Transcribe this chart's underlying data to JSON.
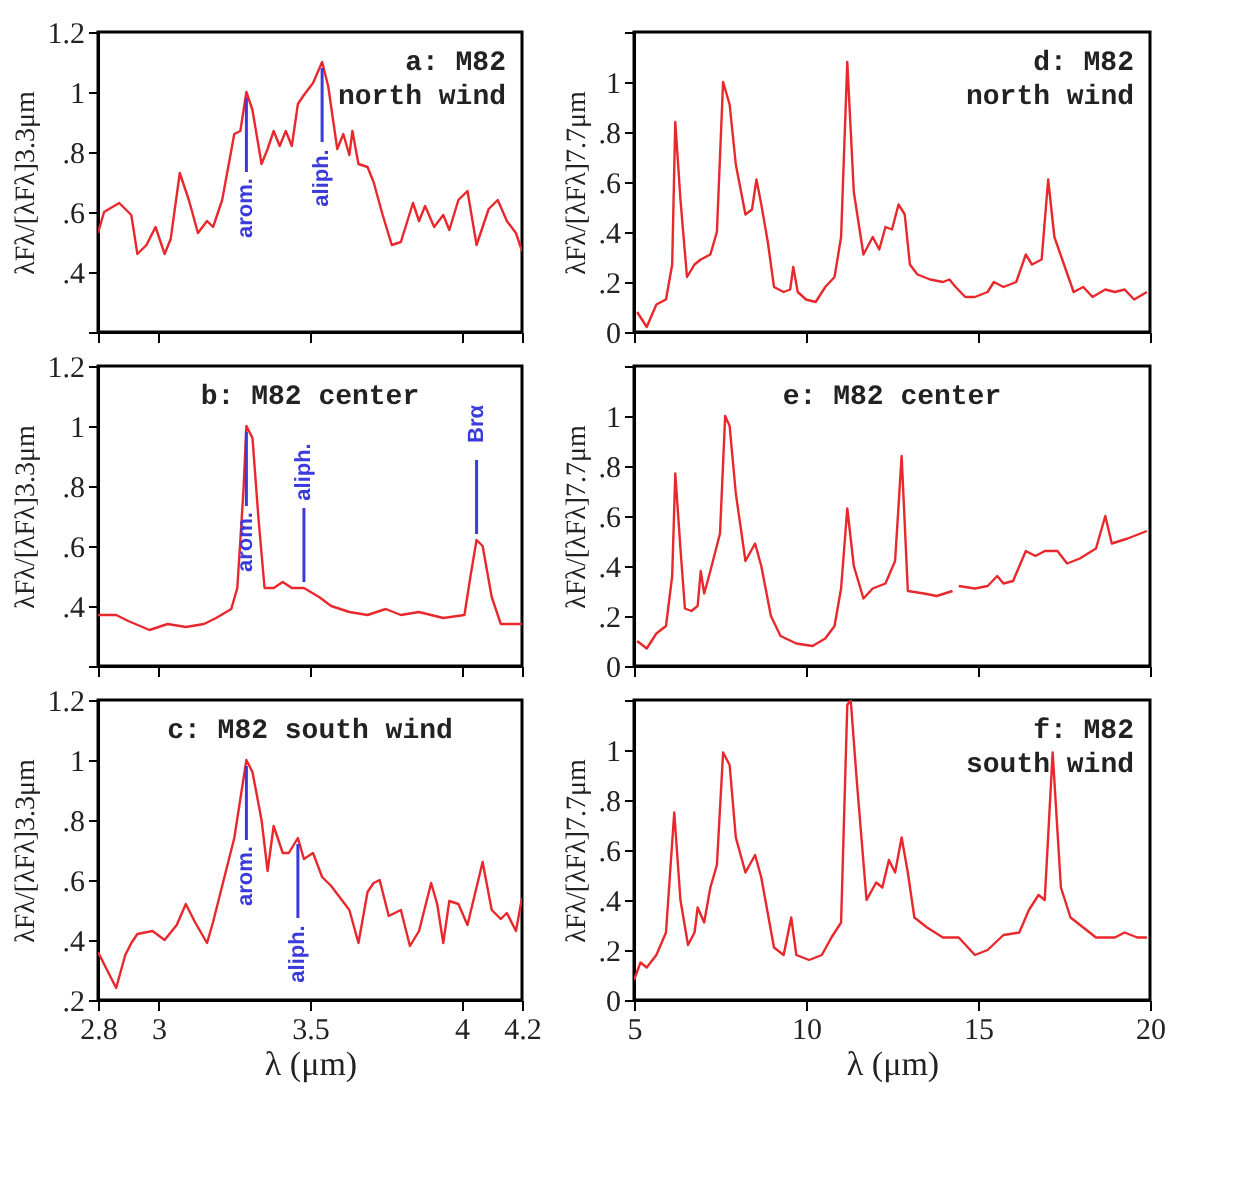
{
  "chart_data": [
    {
      "type": "line",
      "title": "a: M82\nnorth wind",
      "ylabel": "λFλ/[λFλ]3.3μm",
      "xlim": [
        2.8,
        4.2
      ],
      "ylim": [
        0.2,
        1.2
      ],
      "xticks": [
        2.8,
        3,
        3.5,
        4,
        4.2
      ],
      "yticks": [
        {
          "value": 0.2,
          "label": null
        },
        {
          "value": 0.4,
          "label": ".4"
        },
        {
          "value": 0.6,
          "label": ".6"
        },
        {
          "value": 0.8,
          "label": ".8"
        },
        1,
        1.2
      ],
      "tick_labels": "y",
      "grid": false,
      "series": [
        {
          "color": "#e8282c",
          "x": [
            2.8,
            2.82,
            2.87,
            2.91,
            2.93,
            2.96,
            2.99,
            3.02,
            3.04,
            3.07,
            3.1,
            3.13,
            3.16,
            3.18,
            3.21,
            3.25,
            3.27,
            3.29,
            3.31,
            3.34,
            3.36,
            3.38,
            3.4,
            3.42,
            3.44,
            3.46,
            3.48,
            3.51,
            3.54,
            3.56,
            3.59,
            3.61,
            3.63,
            3.64,
            3.66,
            3.69,
            3.71,
            3.74,
            3.77,
            3.8,
            3.84,
            3.86,
            3.88,
            3.91,
            3.94,
            3.96,
            3.99,
            4.02,
            4.05,
            4.09,
            4.12,
            4.15,
            4.18,
            4.2
          ],
          "values": [
            0.53,
            0.6,
            0.63,
            0.59,
            0.46,
            0.49,
            0.55,
            0.46,
            0.51,
            0.73,
            0.64,
            0.53,
            0.57,
            0.55,
            0.64,
            0.86,
            0.87,
            1.0,
            0.94,
            0.76,
            0.81,
            0.87,
            0.82,
            0.87,
            0.82,
            0.96,
            0.99,
            1.03,
            1.1,
            1.02,
            0.81,
            0.86,
            0.79,
            0.87,
            0.76,
            0.75,
            0.7,
            0.59,
            0.49,
            0.5,
            0.63,
            0.57,
            0.62,
            0.55,
            0.59,
            0.54,
            0.64,
            0.67,
            0.49,
            0.61,
            0.64,
            0.57,
            0.53,
            0.47
          ]
        }
      ],
      "annotations": [
        {
          "text": "arom.",
          "x": 3.29,
          "y": 1.0
        },
        {
          "text": "aliph.",
          "x": 3.54,
          "y": 1.1
        }
      ]
    },
    {
      "type": "line",
      "title": "d: M82\nnorth wind",
      "ylabel": "λFλ/[λFλ]7.7μm",
      "xlim": [
        5,
        20
      ],
      "ylim": [
        0,
        1.2
      ],
      "xticks": [
        5,
        10,
        15,
        20
      ],
      "yticks": [
        0,
        {
          "value": 0.2,
          "label": ".2"
        },
        {
          "value": 0.4,
          "label": ".4"
        },
        {
          "value": 0.6,
          "label": ".6"
        },
        {
          "value": 0.8,
          "label": ".8"
        },
        1,
        {
          "value": 1.2,
          "label": null
        }
      ],
      "tick_labels": "y",
      "grid": false,
      "series": [
        {
          "color": "#e8282c",
          "x": [
            5.09,
            5.37,
            5.65,
            5.93,
            6.11,
            6.2,
            6.35,
            6.54,
            6.76,
            6.94,
            7.22,
            7.41,
            7.59,
            7.78,
            7.96,
            8.24,
            8.43,
            8.56,
            8.7,
            8.89,
            9.07,
            9.35,
            9.54,
            9.63,
            9.76,
            10.0,
            10.28,
            10.56,
            10.83,
            11.02,
            11.2,
            11.39,
            11.67,
            11.94,
            12.13,
            12.31,
            12.5,
            12.69,
            12.87,
            13.02,
            13.24,
            13.61,
            13.98,
            14.17,
            14.35,
            14.63,
            14.91,
            15.28,
            15.46,
            15.74,
            16.11,
            16.39,
            16.57,
            16.85,
            17.04,
            17.22,
            17.5,
            17.78,
            18.06,
            18.33,
            18.7,
            18.98,
            19.26,
            19.54,
            19.91
          ],
          "values": [
            0.08,
            0.02,
            0.11,
            0.13,
            0.27,
            0.84,
            0.53,
            0.22,
            0.27,
            0.29,
            0.31,
            0.4,
            1.0,
            0.91,
            0.67,
            0.47,
            0.49,
            0.61,
            0.51,
            0.36,
            0.18,
            0.16,
            0.17,
            0.26,
            0.16,
            0.13,
            0.12,
            0.18,
            0.22,
            0.38,
            1.08,
            0.56,
            0.31,
            0.38,
            0.33,
            0.42,
            0.41,
            0.51,
            0.47,
            0.27,
            0.23,
            0.21,
            0.2,
            0.21,
            0.18,
            0.14,
            0.14,
            0.16,
            0.2,
            0.18,
            0.2,
            0.31,
            0.27,
            0.29,
            0.61,
            0.38,
            0.27,
            0.16,
            0.18,
            0.14,
            0.17,
            0.16,
            0.17,
            0.13,
            0.16
          ]
        }
      ]
    },
    {
      "type": "line",
      "title": "b: M82 center",
      "ylabel": "λFλ/[λFλ]3.3μm",
      "xlim": [
        2.8,
        4.2
      ],
      "ylim": [
        0.2,
        1.2
      ],
      "xticks": [
        2.8,
        3,
        3.5,
        4,
        4.2
      ],
      "yticks": [
        {
          "value": 0.2,
          "label": null
        },
        {
          "value": 0.4,
          "label": ".4"
        },
        {
          "value": 0.6,
          "label": ".6"
        },
        {
          "value": 0.8,
          "label": ".8"
        },
        1,
        1.2
      ],
      "tick_labels": "y",
      "grid": false,
      "series": [
        {
          "color": "#e8282c",
          "x": [
            2.8,
            2.86,
            2.9,
            2.97,
            3.03,
            3.09,
            3.15,
            3.19,
            3.24,
            3.26,
            3.28,
            3.29,
            3.31,
            3.33,
            3.35,
            3.38,
            3.41,
            3.44,
            3.48,
            3.53,
            3.57,
            3.63,
            3.69,
            3.75,
            3.8,
            3.86,
            3.94,
            4.01,
            4.03,
            4.05,
            4.07,
            4.1,
            4.13,
            4.2
          ],
          "values": [
            0.37,
            0.37,
            0.35,
            0.32,
            0.34,
            0.33,
            0.34,
            0.36,
            0.39,
            0.46,
            0.78,
            1.0,
            0.96,
            0.69,
            0.46,
            0.46,
            0.48,
            0.46,
            0.46,
            0.43,
            0.4,
            0.38,
            0.37,
            0.39,
            0.37,
            0.38,
            0.36,
            0.37,
            0.5,
            0.62,
            0.6,
            0.43,
            0.34,
            0.34
          ]
        }
      ],
      "annotations": [
        {
          "text": "arom.",
          "x": 3.29,
          "y": 1.0
        },
        {
          "text": "aliph.",
          "x": 3.48,
          "y": 0.46
        },
        {
          "text": "Brα",
          "x": 4.05,
          "y": 0.62
        }
      ]
    },
    {
      "type": "line",
      "title": "e: M82 center",
      "ylabel": "λFλ/[λFλ]7.7μm",
      "xlim": [
        5,
        20
      ],
      "ylim": [
        0,
        1.2
      ],
      "xticks": [
        5,
        10,
        15,
        20
      ],
      "yticks": [
        0,
        {
          "value": 0.2,
          "label": ".2"
        },
        {
          "value": 0.4,
          "label": ".4"
        },
        {
          "value": 0.6,
          "label": ".6"
        },
        {
          "value": 0.8,
          "label": ".8"
        },
        1,
        {
          "value": 1.2,
          "label": null
        }
      ],
      "tick_labels": "y",
      "grid": false,
      "series": [
        {
          "color": "#e8282c",
          "x": [
            5.09,
            5.37,
            5.65,
            5.93,
            6.11,
            6.2,
            6.35,
            6.48,
            6.67,
            6.85,
            6.94,
            7.04,
            7.22,
            7.5,
            7.65,
            7.78,
            7.96,
            8.24,
            8.52,
            8.7,
            8.98,
            9.26,
            9.72,
            10.19,
            10.56,
            10.83,
            11.02,
            11.2,
            11.39,
            11.67,
            11.94,
            12.31,
            12.59,
            12.78,
            12.96,
            13.43,
            13.8,
            14.26,
            14.35,
            14.44,
            14.91,
            15.28,
            15.56,
            15.74,
            16.02,
            16.39,
            16.67,
            16.94,
            17.31,
            17.59,
            17.96,
            18.43,
            18.7,
            18.89,
            19.35,
            19.91
          ],
          "values": [
            0.1,
            0.07,
            0.13,
            0.16,
            0.36,
            0.77,
            0.47,
            0.23,
            0.22,
            0.24,
            0.38,
            0.29,
            0.38,
            0.53,
            1.0,
            0.96,
            0.69,
            0.42,
            0.49,
            0.4,
            0.2,
            0.12,
            0.09,
            0.08,
            0.11,
            0.16,
            0.31,
            0.63,
            0.4,
            0.27,
            0.31,
            0.33,
            0.42,
            0.84,
            0.3,
            0.29,
            0.28,
            0.3,
            null,
            0.32,
            0.31,
            0.32,
            0.36,
            0.33,
            0.34,
            0.46,
            0.44,
            0.46,
            0.46,
            0.41,
            0.43,
            0.47,
            0.6,
            0.49,
            0.51,
            0.54
          ]
        }
      ]
    },
    {
      "type": "line",
      "title": "c: M82 south wind",
      "ylabel": "λFλ/[λFλ]3.3μm",
      "xlabel": "λ (μm)",
      "xlim": [
        2.8,
        4.2
      ],
      "ylim": [
        0.2,
        1.2
      ],
      "xticks": [
        2.8,
        3,
        3.5,
        4,
        4.2
      ],
      "yticks": [
        {
          "value": 0.2,
          "label": ".2"
        },
        {
          "value": 0.4,
          "label": ".4"
        },
        {
          "value": 0.6,
          "label": ".6"
        },
        {
          "value": 0.8,
          "label": ".8"
        },
        1,
        1.2
      ],
      "grid": false,
      "series": [
        {
          "color": "#e8282c",
          "x": [
            2.8,
            2.83,
            2.86,
            2.89,
            2.91,
            2.93,
            2.98,
            3.02,
            3.06,
            3.09,
            3.12,
            3.16,
            3.18,
            3.21,
            3.25,
            3.27,
            3.29,
            3.31,
            3.34,
            3.36,
            3.38,
            3.41,
            3.43,
            3.46,
            3.48,
            3.51,
            3.54,
            3.57,
            3.6,
            3.63,
            3.66,
            3.69,
            3.71,
            3.73,
            3.76,
            3.8,
            3.83,
            3.86,
            3.9,
            3.92,
            3.94,
            3.96,
            3.99,
            4.02,
            4.07,
            4.1,
            4.13,
            4.15,
            4.18,
            4.2
          ],
          "values": [
            0.36,
            0.3,
            0.24,
            0.35,
            0.39,
            0.42,
            0.43,
            0.4,
            0.45,
            0.52,
            0.46,
            0.39,
            0.46,
            0.58,
            0.74,
            0.87,
            1.0,
            0.96,
            0.8,
            0.63,
            0.78,
            0.69,
            0.69,
            0.74,
            0.67,
            0.69,
            0.61,
            0.58,
            0.54,
            0.5,
            0.39,
            0.56,
            0.59,
            0.6,
            0.48,
            0.5,
            0.38,
            0.43,
            0.59,
            0.52,
            0.39,
            0.53,
            0.52,
            0.45,
            0.66,
            0.5,
            0.47,
            0.49,
            0.43,
            0.54
          ]
        }
      ],
      "annotations": [
        {
          "text": "arom.",
          "x": 3.29,
          "y": 1.0
        },
        {
          "text": "aliph.",
          "x": 3.46,
          "y": 0.74
        }
      ]
    },
    {
      "type": "line",
      "title": "f: M82\nsouth wind",
      "ylabel": "λFλ/[λFλ]7.7μm",
      "xlabel": "λ (μm)",
      "xlim": [
        5,
        20
      ],
      "ylim": [
        0,
        1.2
      ],
      "xticks": [
        5,
        10,
        15,
        20
      ],
      "yticks": [
        0,
        {
          "value": 0.2,
          "label": ".2"
        },
        {
          "value": 0.4,
          "label": ".4"
        },
        {
          "value": 0.6,
          "label": ".6"
        },
        {
          "value": 0.8,
          "label": ".8"
        },
        1,
        {
          "value": 1.2,
          "label": null
        }
      ],
      "grid": false,
      "series": [
        {
          "color": "#e8282c",
          "x": [
            5.0,
            5.19,
            5.37,
            5.65,
            5.93,
            6.17,
            6.35,
            6.57,
            6.76,
            6.85,
            7.04,
            7.22,
            7.41,
            7.59,
            7.78,
            7.96,
            8.24,
            8.52,
            8.7,
            9.07,
            9.35,
            9.57,
            9.72,
            10.09,
            10.46,
            10.74,
            11.02,
            11.2,
            11.3,
            11.48,
            11.76,
            12.04,
            12.22,
            12.41,
            12.59,
            12.78,
            12.96,
            13.15,
            13.52,
            13.98,
            14.44,
            14.91,
            15.28,
            15.74,
            16.2,
            16.48,
            16.76,
            16.94,
            17.17,
            17.41,
            17.69,
            18.06,
            18.43,
            18.98,
            19.26,
            19.63,
            19.91
          ],
          "values": [
            0.08,
            0.15,
            0.13,
            0.18,
            0.27,
            0.75,
            0.4,
            0.22,
            0.27,
            0.37,
            0.31,
            0.45,
            0.54,
            0.99,
            0.94,
            0.65,
            0.51,
            0.58,
            0.49,
            0.21,
            0.18,
            0.33,
            0.18,
            0.16,
            0.18,
            0.25,
            0.31,
            1.18,
            1.2,
            0.87,
            0.4,
            0.47,
            0.45,
            0.56,
            0.51,
            0.65,
            0.51,
            0.33,
            0.29,
            0.25,
            0.25,
            0.18,
            0.2,
            0.26,
            0.27,
            0.36,
            0.42,
            0.4,
            0.99,
            0.45,
            0.33,
            0.29,
            0.25,
            0.25,
            0.27,
            0.25,
            0.25
          ]
        }
      ]
    }
  ]
}
